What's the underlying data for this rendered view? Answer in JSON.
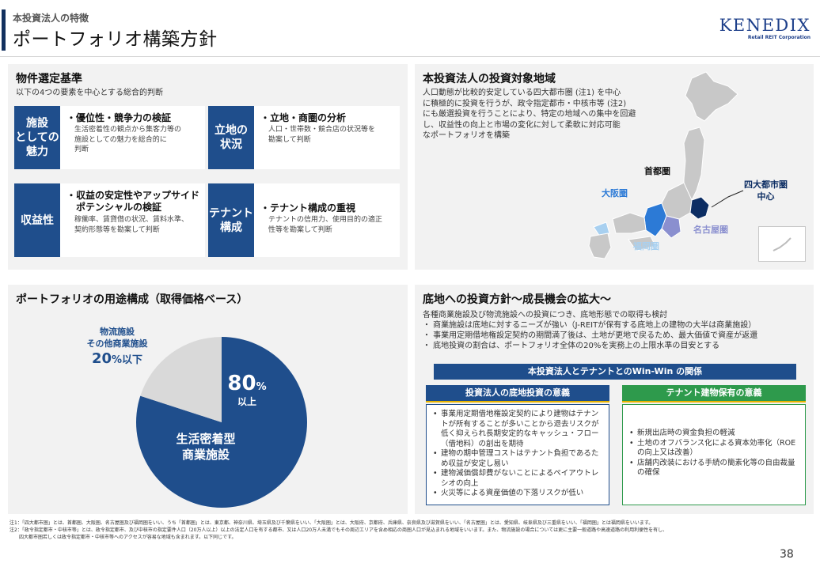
{
  "header": {
    "subtitle": "本投資法人の特徴",
    "title": "ポートフォリオ構築方針",
    "logo_main": "KENEDIX",
    "logo_sub": "Retail REIT Corporation"
  },
  "criteria": {
    "title": "物件選定基準",
    "intro": "以下の4つの要素を中心とする総合的判断",
    "items": [
      {
        "label": "施設\nとしての\n魅力",
        "head": "・優位性・競争力の検証",
        "desc": "生活密着性の観点から集客力等の\n施設としての魅力を総合的に\n判断"
      },
      {
        "label": "立地の\n状況",
        "head": "・立地・商圏の分析",
        "desc": "人口・世帯数・競合店の状況等を\n勘案して判断"
      },
      {
        "label": "収益性",
        "head": "・収益の安定性やアップサイド\n　ポテンシャルの検証",
        "desc": "稼働率、賃貸借の状況、賃料水準、\n契約形態等を勘案して判断"
      },
      {
        "label": "テナント\n構成",
        "head": "・テナント構成の重視",
        "desc": "テナントの信用力、使用目的の適正\n性等を勘案して判断"
      }
    ]
  },
  "region": {
    "title": "本投資法人の投資対象地域",
    "desc_lines": [
      "人口動態が比較的安定している四大都市圏 (注1) を中心",
      "に積極的に投資を行うが、政令指定都市・中核市等 (注2)",
      "にも厳選投資を行うことにより、特定の地域への集中を回避",
      "し、収益性の向上と市場の変化に対して柔軟に対応可能",
      "なポートフォリオを構築"
    ],
    "labels": {
      "shutoken": "首都圏",
      "osaka": "大阪圏",
      "nagoya": "名古屋圏",
      "fukuoka": "福岡圏",
      "center": "四大都市圏\n中心"
    }
  },
  "portfolio": {
    "title": "ポートフォリオの用途構成（取得価格ベース）",
    "small_label": "物流施設\nその他商業施設",
    "small_pct": "20",
    "small_pct_unit": "%以下",
    "big_pct": "80",
    "big_pct_unit": "%",
    "big_sub": "以上",
    "big_label": "生活密着型\n商業施設"
  },
  "chart_data": {
    "type": "pie",
    "categories": [
      "生活密着型商業施設",
      "物流施設その他商業施設"
    ],
    "values": [
      80,
      20
    ],
    "colors": [
      "#1f4e8c",
      "#d9d9d9"
    ]
  },
  "land": {
    "title": "底地への投資方針～成長機会の拡大～",
    "lines": [
      "各種商業施設及び物流施設への投資につき、底地形態での取得も検討",
      "・ 商業施設は底地に対するニーズが強い（J-REITが保有する底地上の建物の大半は商業施設）",
      "・ 事業用定期借地権設定契約の期間満了後は、土地が更地で戻るため、最大価値で資産が返還",
      "・ 底地投資の割合は、ポートフォリオ全体の20%を実務上の上限水準の目安とする"
    ],
    "winwin_title": "本投資法人とテナントとのWin-Win の関係",
    "left_head": "投資法人の底地投資の意義",
    "right_head": "テナント建物保有の意義",
    "left_items": [
      "事業用定期借地権設定契約により建物はテナントが所有することが多いことから退去リスクが低く抑えられ長期安定的なキャッシュ・フロー（借地料）の創出を期待",
      "建物の期中管理コストはテナント負担であるため収益が安定し易い",
      "建物減価償却費がないことによるペイアウトレシオの向上",
      "火災等による資産価値の下落リスクが低い"
    ],
    "right_items": [
      "新規出店時の資金負担の軽減",
      "土地のオフバランス化による資本効率化（ROEの向上又は改善）",
      "店舗内改装における手続の簡素化等の自由裁量の確保"
    ]
  },
  "footnotes": [
    "注1：「四大都市圏」とは、首都圏、大阪圏、名古屋圏及び福岡圏をいい、うち「首都圏」とは、東京都、神奈川県、埼玉県及び千葉県をいい、「大阪圏」とは、大阪府、京都府、兵庫県、奈良県及び滋賀県をいい、「名古屋圏」とは、愛知県、岐阜県及び三重県をいい、「福岡圏」とは福岡県をいいます。",
    "注2：「政令指定都市・中核市等」とは、政令指定都市、及び中核市の指定要件人口（20万人以上）以上の法定人口を有する都市、又は人口20万人未満でもその周辺エリアを含め相応の商圏人口が見込まれる地域をいいます。また、物流施設の場合については更に主要一般道路や高速道路の利用利便性を有し、",
    "　　四大都市圏若しくは政令指定都市・中核市等へのアクセスが容易な地域も含まれます。以下同じです。"
  ],
  "page_number": "38"
}
